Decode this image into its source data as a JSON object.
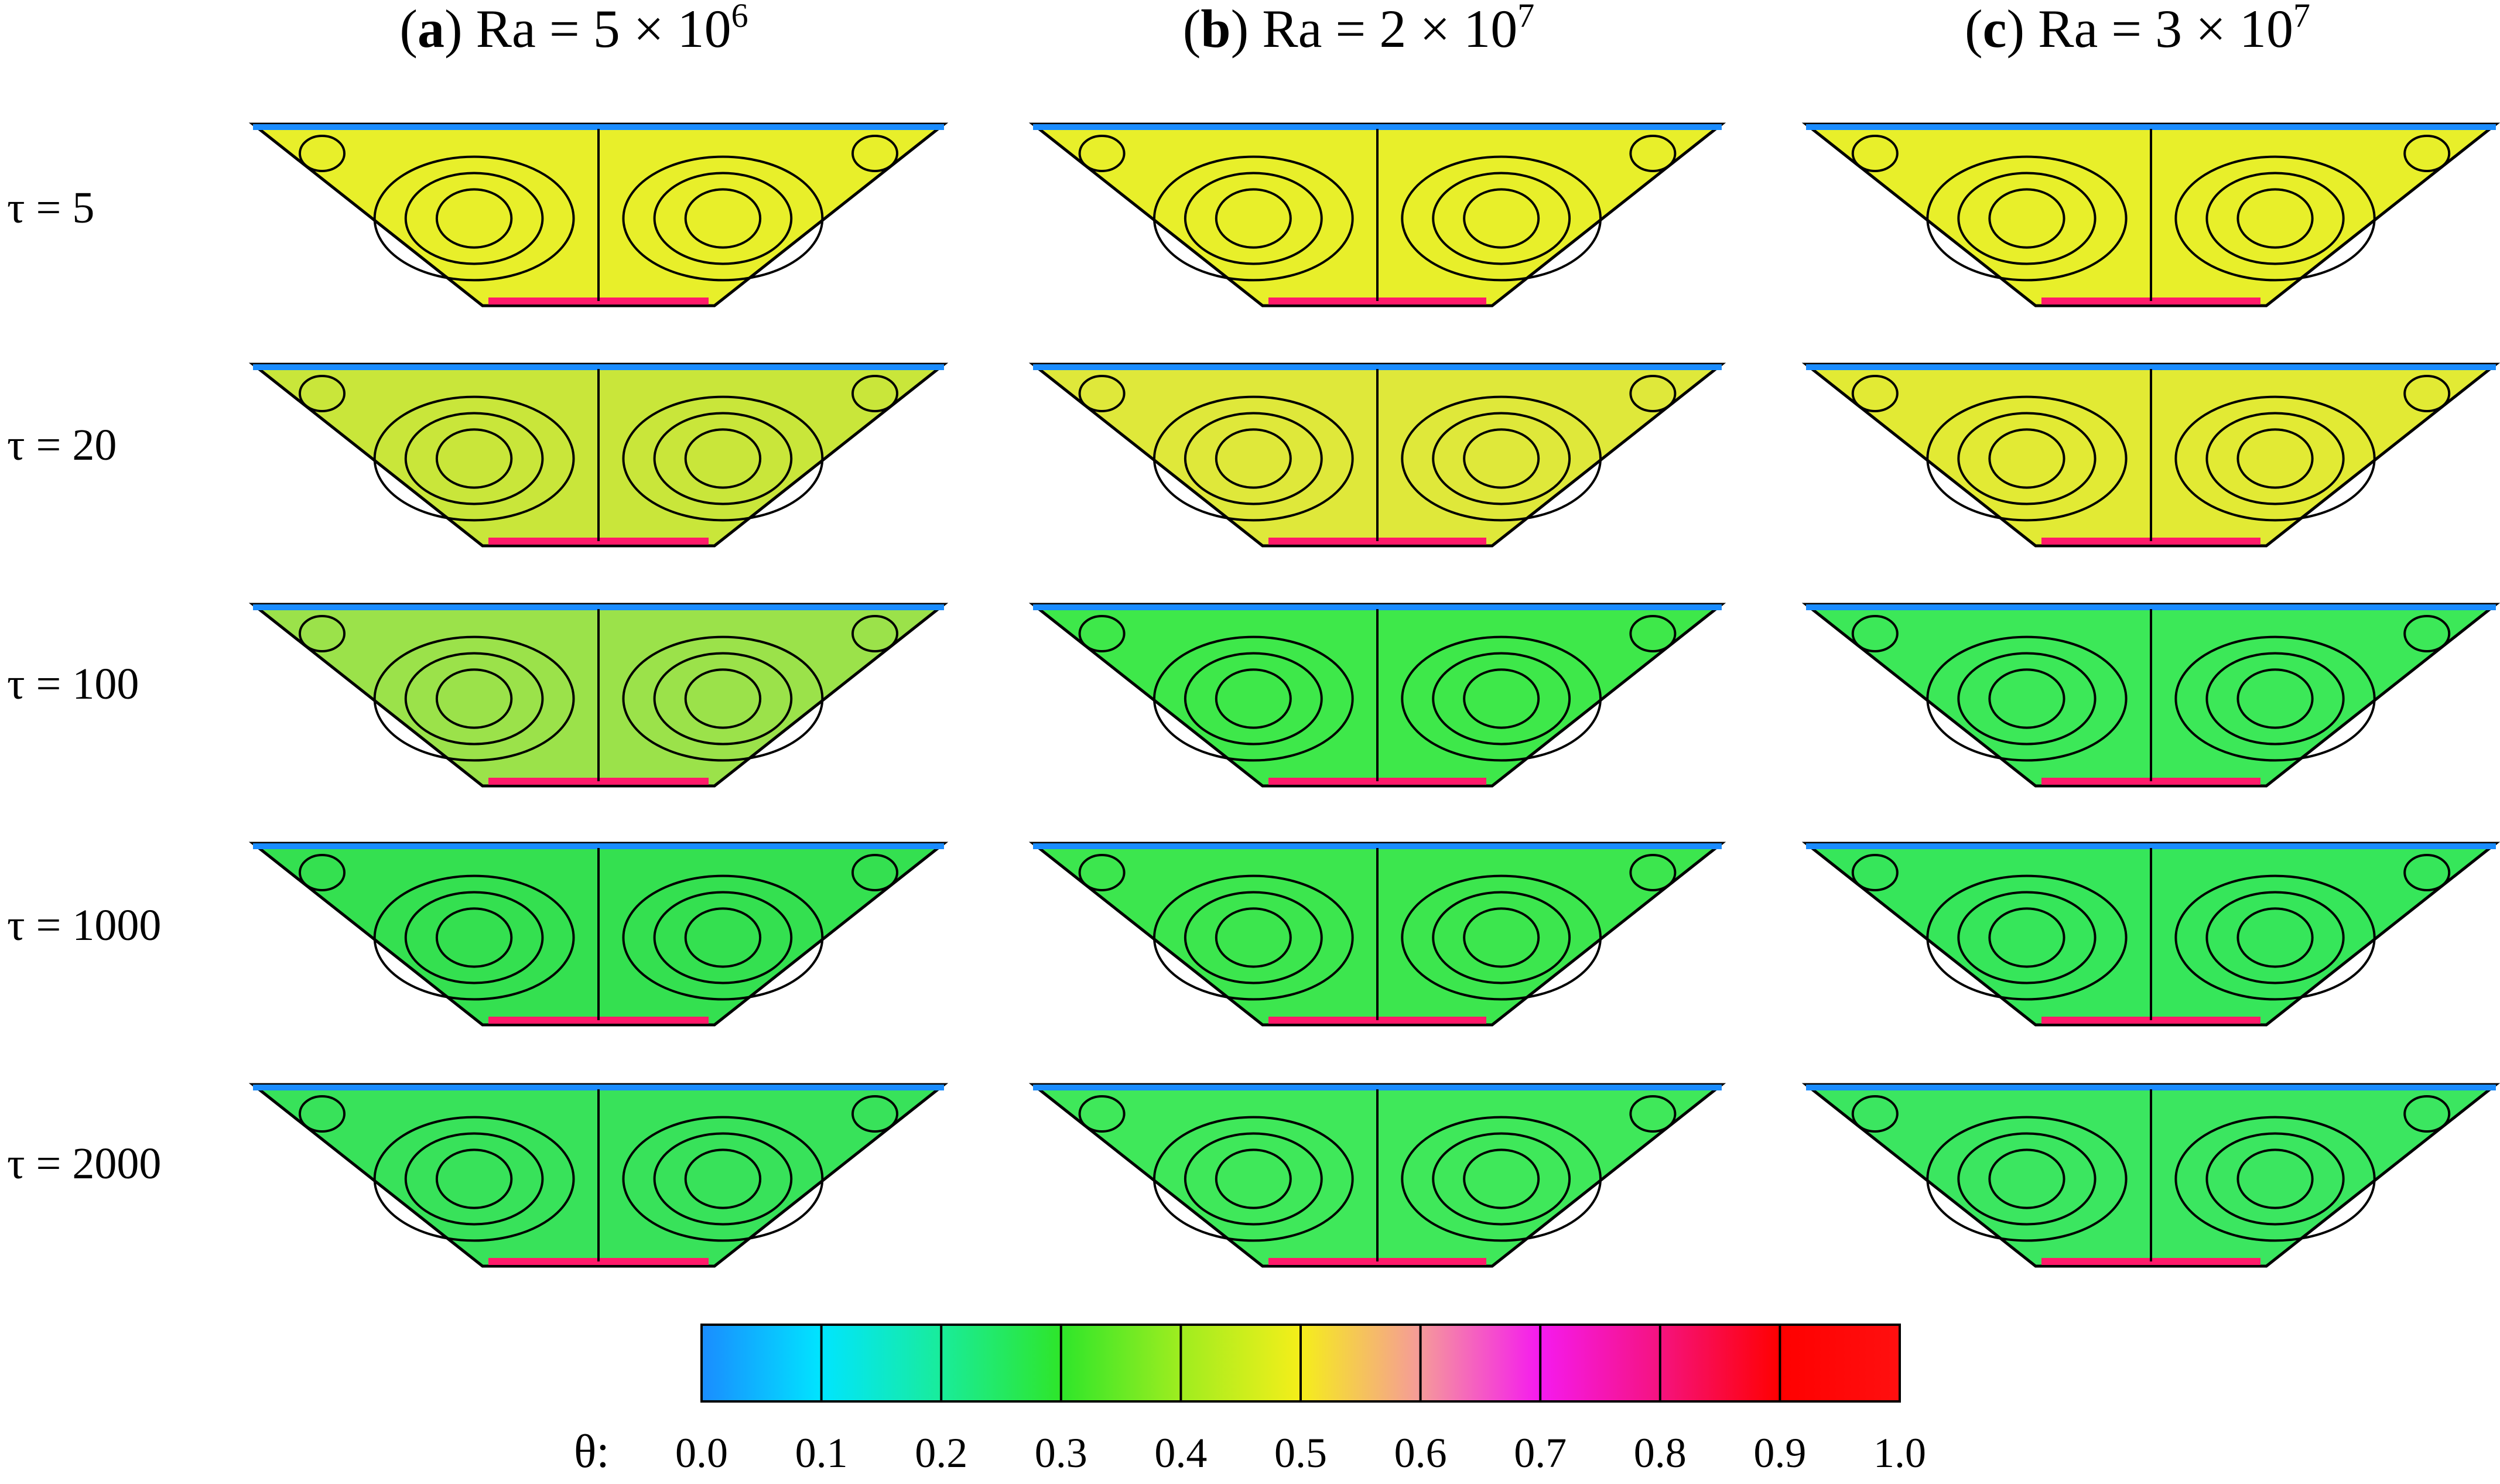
{
  "columns": [
    {
      "letter": "a",
      "title": "Ra = 5 × 10",
      "exp": "6",
      "open": "(",
      "close": ")"
    },
    {
      "letter": "b",
      "title": "Ra = 2 × 10",
      "exp": "7",
      "open": "(",
      "close": ")"
    },
    {
      "letter": "c",
      "title": "Ra = 3 × 10",
      "exp": "7",
      "open": "(",
      "close": ")"
    }
  ],
  "rows": [
    {
      "label": "τ = 5"
    },
    {
      "label": "τ = 20"
    },
    {
      "label": "τ = 100"
    },
    {
      "label": "τ = 1000"
    },
    {
      "label": "τ = 2000"
    }
  ],
  "panel_fill": [
    [
      "#e8ef2a",
      "#e8ef2a",
      "#e8ef2a"
    ],
    [
      "#c9e63a",
      "#dfe83a",
      "#e2ea34"
    ],
    [
      "#9be24a",
      "#3ee84a",
      "#3ce858"
    ],
    [
      "#34e050",
      "#3ce64e",
      "#36e65a"
    ],
    [
      "#38e25a",
      "#3fe85a",
      "#3be660"
    ]
  ],
  "colorbar": {
    "label": "θ:",
    "ticks": [
      "0.0",
      "0.1",
      "0.2",
      "0.3",
      "0.4",
      "0.5",
      "0.6",
      "0.7",
      "0.8",
      "0.9",
      "1.0"
    ],
    "colors": [
      "#1a8cff",
      "#00e5ff",
      "#19ec9a",
      "#2ee62a",
      "#9fed1f",
      "#f5ee1a",
      "#f59a9a",
      "#f51aef",
      "#f5137f",
      "#ff0000",
      "#ff1010"
    ]
  }
}
